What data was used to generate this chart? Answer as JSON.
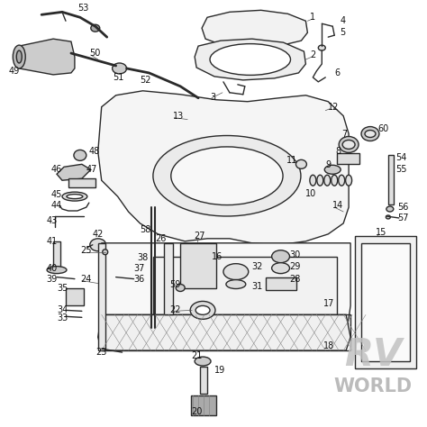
{
  "bg_color": "#ffffff",
  "line_color": "#2a2a2a",
  "label_color": "#111111",
  "watermark_rv_color": "#b8b8b8",
  "watermark_world_color": "#aaaaaa",
  "fig_size": [
    4.74,
    4.74
  ],
  "dpi": 100
}
